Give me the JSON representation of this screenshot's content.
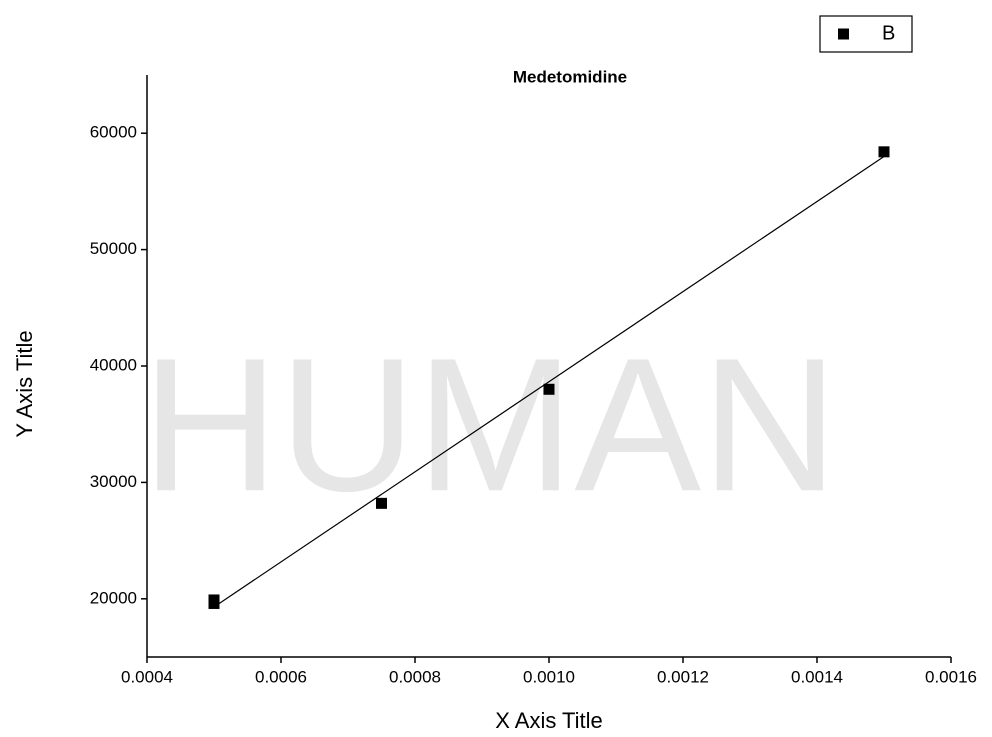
{
  "chart_data": {
    "type": "scatter",
    "title": "Medetomidine",
    "watermark": "HUMAN",
    "x_label": "X Axis Title",
    "y_label": "Y Axis Title",
    "series": [
      {
        "name": "B",
        "color": "#000000",
        "x": [
          0.0005,
          0.0005,
          0.00075,
          0.001,
          0.0015
        ],
        "values": [
          19600,
          19900,
          28200,
          38000,
          58400
        ]
      }
    ],
    "fit": {
      "x": [
        0.0005,
        0.0015
      ],
      "values": [
        19300,
        58000
      ],
      "color": "#000000"
    },
    "xlim": [
      0.0004,
      0.0016
    ],
    "xticks": [
      0.0004,
      0.0006,
      0.0008,
      {
        "value": 0.001,
        "label": "0.0010"
      },
      0.0012,
      0.0014,
      0.0016
    ],
    "ylim": [
      15000,
      65000
    ],
    "yticks": [
      20000,
      30000,
      40000,
      50000,
      60000
    ],
    "legend": "top-right",
    "grid": false
  }
}
